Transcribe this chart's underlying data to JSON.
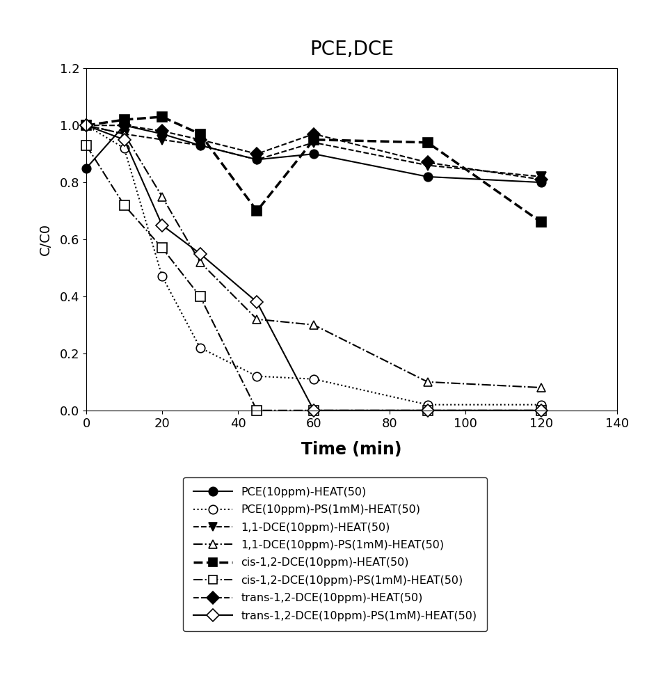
{
  "title": "PCE,DCE",
  "xlabel": "Time (min)",
  "ylabel": "C/C0",
  "xlim": [
    0,
    140
  ],
  "ylim": [
    0.0,
    1.2
  ],
  "xticks": [
    0,
    20,
    40,
    60,
    80,
    100,
    120,
    140
  ],
  "yticks": [
    0.0,
    0.2,
    0.4,
    0.6,
    0.8,
    1.0,
    1.2
  ],
  "series": [
    {
      "label": "PCE(10ppm)-HEAT(50)",
      "x": [
        0,
        10,
        20,
        30,
        45,
        60,
        90,
        120
      ],
      "y": [
        0.85,
        1.0,
        0.97,
        0.93,
        0.88,
        0.9,
        0.82,
        0.8
      ],
      "linestyle": "-",
      "marker": "o",
      "markersize": 9,
      "filled": true,
      "linewidth": 1.5
    },
    {
      "label": "PCE(10ppm)-PS(1mM)-HEAT(50)",
      "x": [
        0,
        10,
        20,
        30,
        45,
        60,
        90,
        120
      ],
      "y": [
        1.0,
        0.92,
        0.47,
        0.22,
        0.12,
        0.11,
        0.02,
        0.02
      ],
      "linestyle": ":",
      "marker": "o",
      "markersize": 9,
      "filled": false,
      "linewidth": 1.5
    },
    {
      "label": "1,1-DCE(10ppm)-HEAT(50)",
      "x": [
        0,
        10,
        20,
        30,
        45,
        60,
        90,
        120
      ],
      "y": [
        1.0,
        0.97,
        0.95,
        0.93,
        0.88,
        0.94,
        0.86,
        0.82
      ],
      "linestyle": "--",
      "marker": "v",
      "markersize": 10,
      "filled": true,
      "linewidth": 1.5
    },
    {
      "label": "1,1-DCE(10ppm)-PS(1mM)-HEAT(50)",
      "x": [
        0,
        10,
        20,
        30,
        45,
        60,
        90,
        120
      ],
      "y": [
        1.0,
        0.97,
        0.75,
        0.52,
        0.32,
        0.3,
        0.1,
        0.08
      ],
      "linestyle": "-.",
      "marker": "^",
      "markersize": 9,
      "filled": false,
      "linewidth": 1.5
    },
    {
      "label": "cis-1,2-DCE(10ppm)-HEAT(50)",
      "x": [
        0,
        10,
        20,
        30,
        45,
        60,
        90,
        120
      ],
      "y": [
        1.0,
        1.02,
        1.03,
        0.97,
        0.7,
        0.95,
        0.94,
        0.66
      ],
      "linestyle": "--",
      "marker": "s",
      "markersize": 10,
      "filled": true,
      "linewidth": 2.5
    },
    {
      "label": "cis-1,2-DCE(10ppm)-PS(1mM)-HEAT(50)",
      "x": [
        0,
        10,
        20,
        30,
        45,
        60,
        90,
        120
      ],
      "y": [
        0.93,
        0.72,
        0.57,
        0.4,
        0.0,
        0.0,
        0.0,
        0.0
      ],
      "linestyle": "-.",
      "marker": "s",
      "markersize": 10,
      "filled": false,
      "linewidth": 1.5
    },
    {
      "label": "trans-1,2-DCE(10ppm)-HEAT(50)",
      "x": [
        0,
        10,
        20,
        30,
        45,
        60,
        90,
        120
      ],
      "y": [
        1.0,
        1.0,
        0.98,
        0.95,
        0.9,
        0.97,
        0.87,
        0.81
      ],
      "linestyle": "--",
      "marker": "D",
      "markersize": 9,
      "filled": true,
      "linewidth": 1.5
    },
    {
      "label": "trans-1,2-DCE(10ppm)-PS(1mM)-HEAT(50)",
      "x": [
        0,
        10,
        20,
        30,
        45,
        60,
        90,
        120
      ],
      "y": [
        1.0,
        0.95,
        0.65,
        0.55,
        0.38,
        0.0,
        0.0,
        0.0
      ],
      "linestyle": "-",
      "marker": "D",
      "markersize": 9,
      "filled": false,
      "linewidth": 1.5
    }
  ]
}
